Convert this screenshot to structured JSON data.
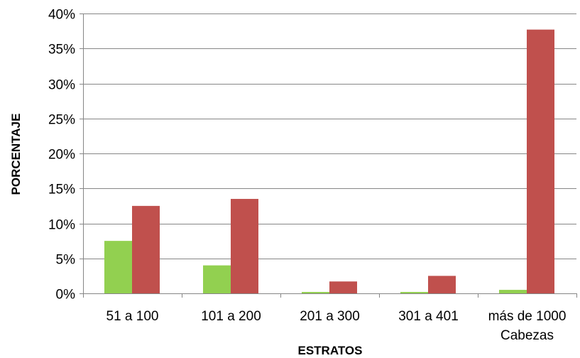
{
  "chart_data": {
    "type": "bar",
    "title": "",
    "xlabel": "ESTRATOS",
    "ylabel": "PORCENTAJE",
    "categories": [
      [
        "51 a 100"
      ],
      [
        "101 a 200"
      ],
      [
        "201 a 300"
      ],
      [
        "301 a 401"
      ],
      [
        "más de 1000",
        "Cabezas"
      ]
    ],
    "series": [
      {
        "values": [
          7.5,
          4.0,
          0.2,
          0.2,
          0.5
        ],
        "color": "#92d050"
      },
      {
        "values": [
          12.5,
          13.5,
          1.7,
          2.5,
          37.7
        ],
        "color": "#c0504d"
      }
    ],
    "ylim": [
      0,
      40
    ],
    "yticks": [
      0,
      5,
      10,
      15,
      20,
      25,
      30,
      35,
      40
    ],
    "ytick_labels": [
      "0%",
      "5%",
      "10%",
      "15%",
      "20%",
      "25%",
      "30%",
      "35%",
      "40%"
    ],
    "grid": true,
    "legend": "none"
  }
}
